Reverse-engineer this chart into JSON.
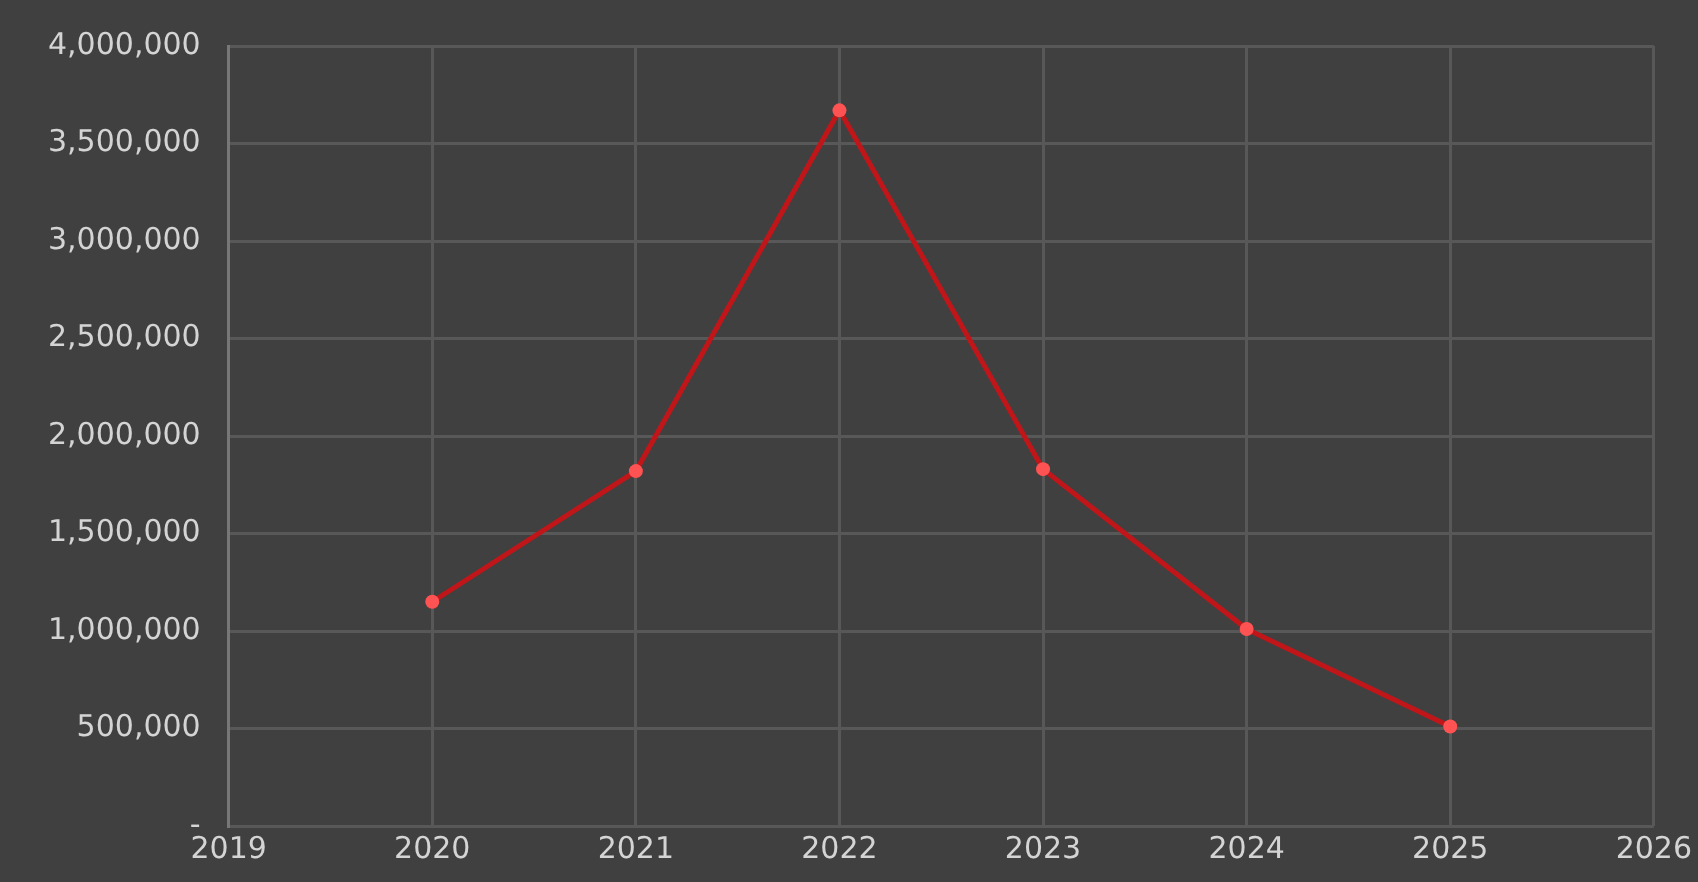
{
  "chart_data": {
    "type": "line",
    "x": [
      2020,
      2021,
      2022,
      2023,
      2024,
      2025
    ],
    "series": [
      {
        "color": "#c0161a",
        "values": [
          1150000,
          1820000,
          3670000,
          1830000,
          1010000,
          510000
        ]
      }
    ],
    "xlim": [
      2019,
      2026
    ],
    "xticks": [
      2019,
      2020,
      2021,
      2022,
      2023,
      2024,
      2025,
      2026
    ],
    "ylim": [
      0,
      4000000
    ],
    "yticks": [
      {
        "value": 0,
        "label": "-"
      },
      {
        "value": 500000,
        "label": "500,000"
      },
      {
        "value": 1000000,
        "label": "1,000,000"
      },
      {
        "value": 1500000,
        "label": "1,500,000"
      },
      {
        "value": 2000000,
        "label": "2,000,000"
      },
      {
        "value": 2500000,
        "label": "2,500,000"
      },
      {
        "value": 3000000,
        "label": "3,000,000"
      },
      {
        "value": 3500000,
        "label": "3,500,000"
      },
      {
        "value": 4000000,
        "label": "4,000,000"
      }
    ],
    "grid": true,
    "legend": false,
    "marker": "circle",
    "line_style": "solid"
  }
}
